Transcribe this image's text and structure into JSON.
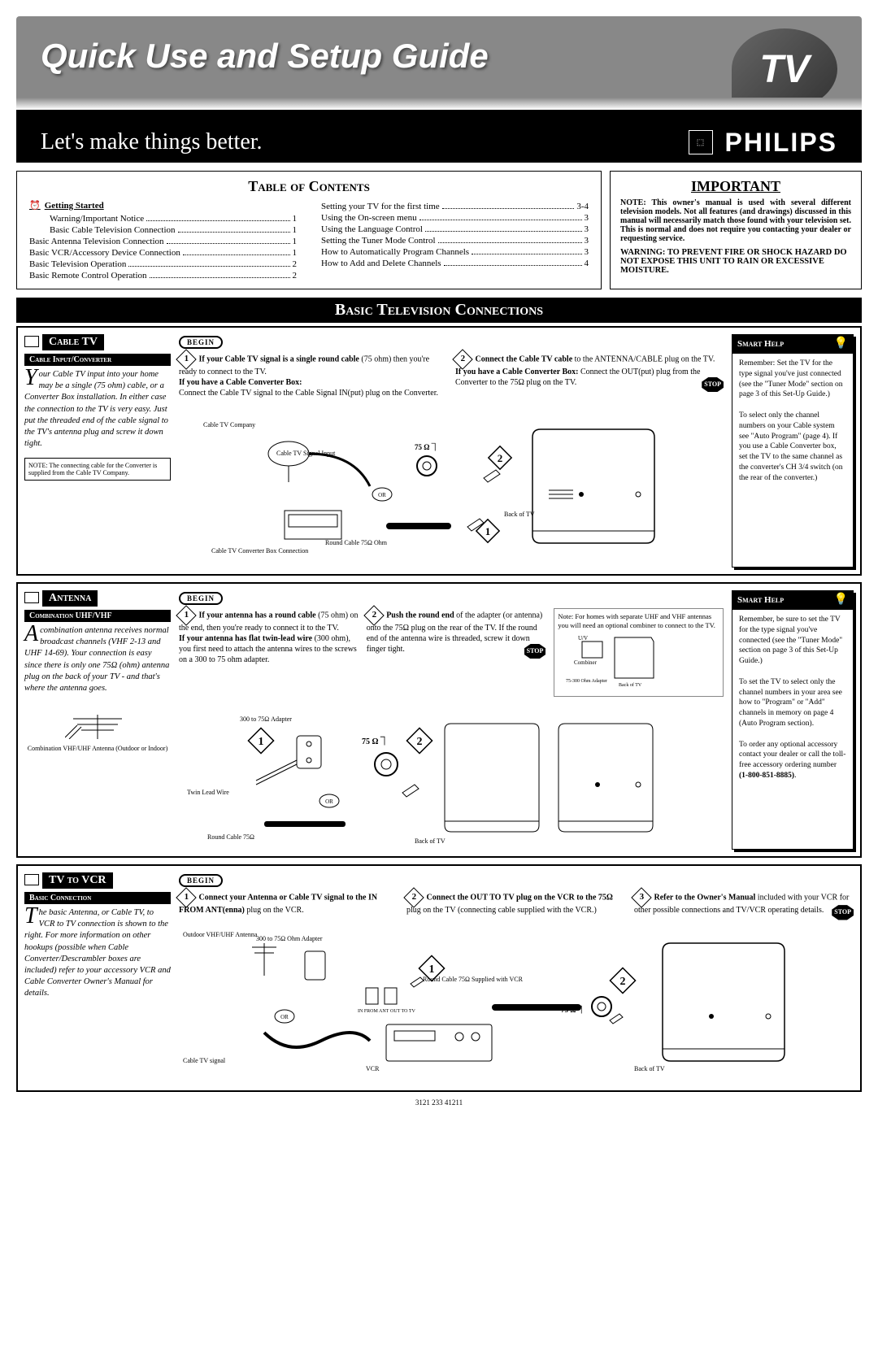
{
  "header": {
    "title": "Quick Use and Setup Guide",
    "badge": "TV",
    "tagline": "Let's make things better.",
    "brand": "PHILIPS"
  },
  "toc": {
    "title": "Table of Contents",
    "getting_started": "Getting Started",
    "left": [
      {
        "label": "Warning/Important Notice",
        "pg": "1",
        "indent": true
      },
      {
        "label": "Basic Cable Television Connection",
        "pg": "1",
        "indent": true
      },
      {
        "label": "Basic Antenna Television Connection",
        "pg": "1",
        "indent": false
      },
      {
        "label": "Basic VCR/Accessory Device Connection",
        "pg": "1",
        "indent": false
      },
      {
        "label": "Basic Television Operation",
        "pg": "2",
        "indent": false
      },
      {
        "label": "Basic Remote Control Operation",
        "pg": "2",
        "indent": false
      }
    ],
    "right": [
      {
        "label": "Setting your TV for the first time",
        "pg": "3-4"
      },
      {
        "label": "Using the On-screen menu",
        "pg": "3"
      },
      {
        "label": "Using the Language Control",
        "pg": "3"
      },
      {
        "label": "Setting the Tuner Mode Control",
        "pg": "3"
      },
      {
        "label": "How to Automatically Program Channels",
        "pg": "3"
      },
      {
        "label": "How to Add and Delete Channels",
        "pg": "4"
      }
    ]
  },
  "important": {
    "title": "IMPORTANT",
    "note": "NOTE: This owner's manual is used with several different television models. Not all features (and drawings) discussed in this manual will necessarily match those found with your television set. This is normal and does not require you contacting your dealer or requesting service.",
    "warning": "WARNING: TO PREVENT FIRE OR SHOCK HAZARD DO NOT EXPOSE THIS UNIT TO RAIN OR EXCESSIVE MOISTURE."
  },
  "main_header": "Basic Television Connections",
  "begin": "BEGIN",
  "stop": "STOP",
  "smart_help": "Smart Help",
  "cable": {
    "title": "Cable TV",
    "sub": "Cable Input/Converter",
    "desc_cap": "Y",
    "desc": "our Cable TV input into your home may be a single (75 ohm) cable, or a Converter Box installation. In either case the connection to the TV is very easy. Just put the threaded end of the cable signal to the TV's antenna plug and screw it down tight.",
    "note": "NOTE: The connecting cable for the Converter is supplied from the Cable TV Company.",
    "step1_bold": "If your Cable TV signal is a single round cable",
    "step1": " (75 ohm) then you're ready to connect to the TV.",
    "step1b_bold": "If you have a Cable Converter Box:",
    "step1b": " Connect the Cable TV signal to the Cable Signal IN(put) plug on the Converter.",
    "step2_bold": "Connect the Cable TV cable",
    "step2": " to the ANTENNA/CABLE plug on the TV.",
    "step2b_bold": "If you have a Cable Converter Box:",
    "step2b": " Connect the OUT(put) plug from the Converter to the 75Ω plug on the TV.",
    "help": "Remember: Set the TV for the type signal you've just connected (see the \"Tuner Mode\" section on page 3 of this Set-Up Guide.)",
    "help2": "To select only the channel numbers on your Cable system see \"Auto Program\" (page 4). If you use a Cable Converter box, set the TV to the same channel as the converter's CH 3/4 switch (on the rear of the converter.)",
    "diag": {
      "cable_company": "Cable TV Company",
      "signal_input": "Cable TV Signal Input",
      "ohm75": "75 Ω ⏋",
      "or": "OR",
      "converter": "Cable TV Converter Box Connection",
      "round": "Round Cable 75Ω Ohm",
      "back": "Back of TV"
    }
  },
  "antenna": {
    "title": "Antenna",
    "sub": "Combination UHF/VHF",
    "desc_cap": "A",
    "desc": " combination antenna receives normal broadcast channels (VHF 2-13 and UHF 14-69). Your connection is easy since there is only one 75Ω (ohm) antenna plug on the back of your TV - and that's where the antenna goes.",
    "ant_label": "Combination VHF/UHF Antenna (Outdoor or Indoor)",
    "step1_bold": "If your antenna has a round cable",
    "step1": " (75 ohm) on the end, then you're ready to connect it to the TV.",
    "step1b_bold": "If your antenna has flat twin-lead wire",
    "step1b": " (300 ohm), you first need to attach the antenna wires to the screws on a 300 to 75 ohm adapter.",
    "step2_bold": "Push the round end",
    "step2": " of the adapter (or antenna) onto the 75Ω plug on the rear of the TV. If the round end of the antenna wire is threaded, screw it down finger tight.",
    "step_note": "Note: For homes with separate UHF and VHF antennas you will need an optional combiner to connect to the TV.",
    "help": "Remember, be sure to set the TV for the type signal you've connected (see the \"Tuner Mode\" section on page 3 of this Set-Up Guide.)",
    "help2": "To set the TV to select only the channel numbers in your area see how to \"Program\" or \"Add\" channels in memory on page 4 (Auto Program section).",
    "help3": "To order any optional accessory contact your dealer or call the toll-free accessory ordering number",
    "help_phone": "(1-800-851-8885)",
    "diag": {
      "adapter": "300 to 75Ω Adapter",
      "ohm75": "75 Ω ⏋",
      "twin": "Twin Lead Wire",
      "or": "OR",
      "round": "Round Cable 75Ω",
      "back": "Back of TV",
      "combiner": "U/V Combiner",
      "adapter2": "75-300 Ohm Adapter",
      "back2": "Back of TV"
    }
  },
  "vcr": {
    "title": "TV to VCR",
    "sub": "Basic Connection",
    "desc_cap": "T",
    "desc": "he basic Antenna, or Cable TV, to VCR to TV connection is shown to the right. For more information on other hookups (possible when Cable Converter/Descrambler boxes are included) refer to your accessory VCR and Cable Converter Owner's Manual for details.",
    "step1_bold": "Connect your Antenna or Cable TV signal to the IN FROM ANT(enna)",
    "step1": " plug on the VCR.",
    "step2_bold": "Connect the OUT TO TV plug on the VCR to the 75Ω",
    "step2": " plug on the TV (connecting cable supplied with the VCR.)",
    "step3_bold": "Refer to the Owner's Manual",
    "step3": " included with your VCR for other possible connections and TV/VCR operating details.",
    "diag": {
      "outdoor": "Outdoor VHF/UHF Antenna",
      "adapter": "300 to 75Ω Ohm Adapter",
      "or": "OR",
      "cable_sig": "Cable TV signal",
      "in_ant": "IN FROM ANT",
      "out_tv": "OUT TO TV",
      "vcr": "VCR",
      "round": "Round Cable 75Ω Supplied with VCR",
      "ohm75": "75 Ω ⏋",
      "back": "Back of TV"
    }
  },
  "footer": "3121 233 41211"
}
